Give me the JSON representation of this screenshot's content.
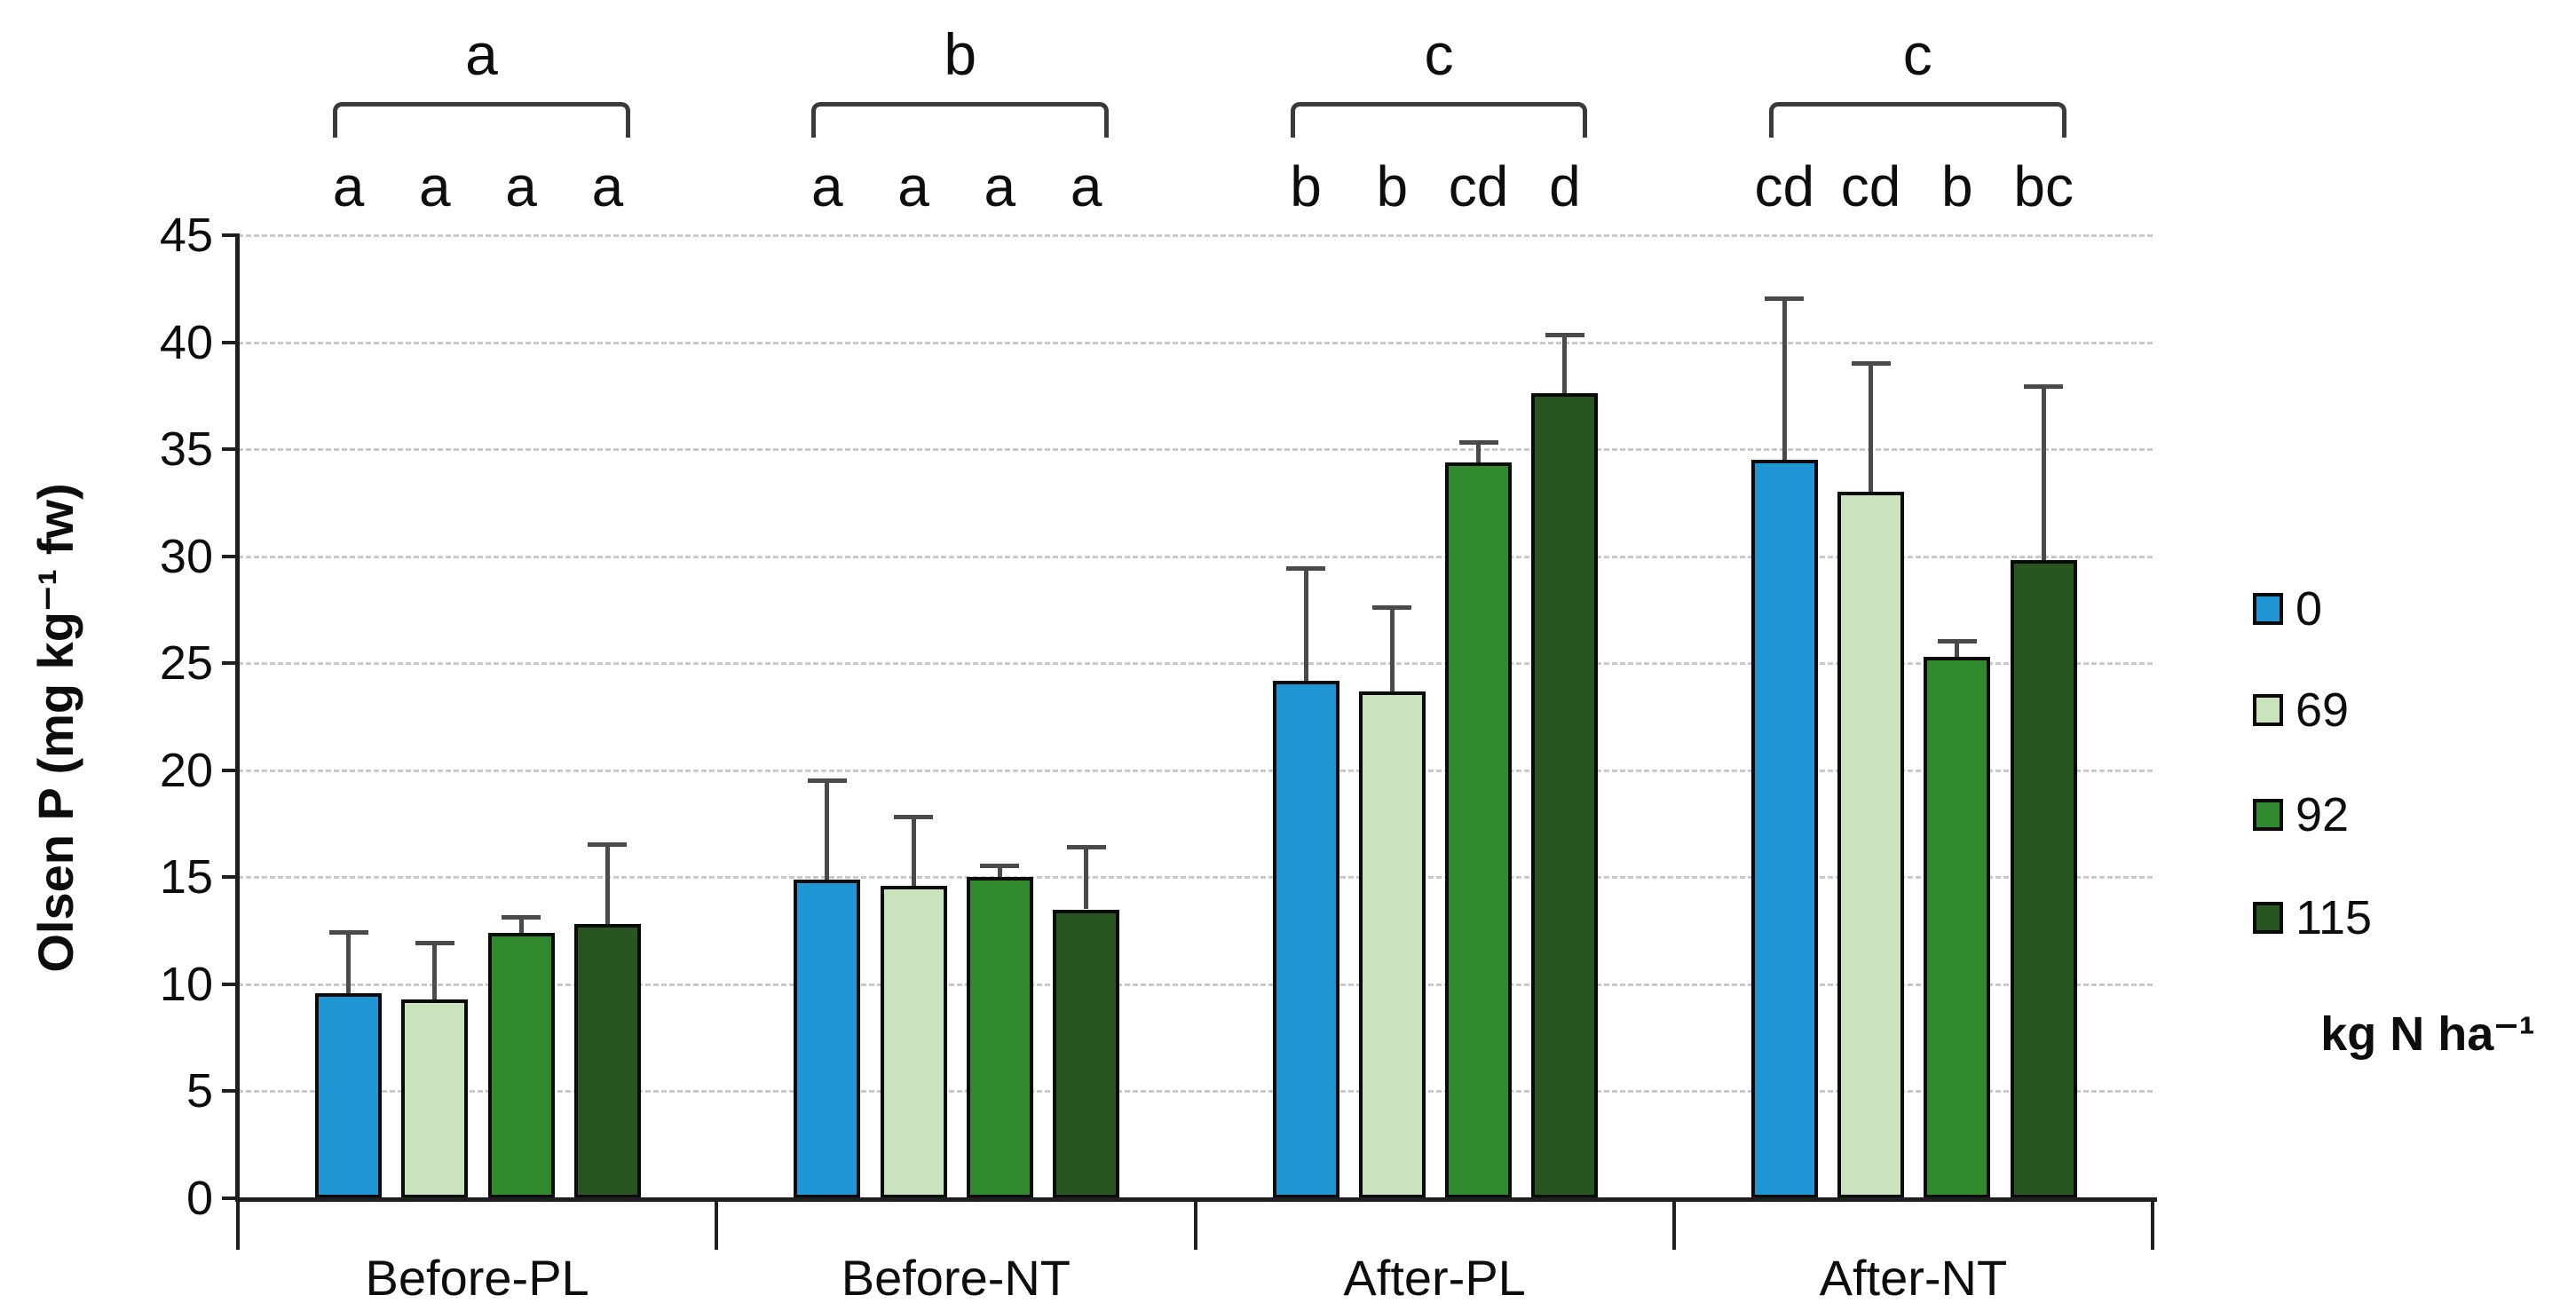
{
  "chart_data": {
    "type": "bar",
    "title": "",
    "ylabel": "Olsen P (mg kg⁻¹ fw)",
    "xlabel": "",
    "ylim": [
      0,
      45
    ],
    "ytick_step": 5,
    "yticks": [
      0,
      5,
      10,
      15,
      20,
      25,
      30,
      35,
      40,
      45
    ],
    "grid": "horizontal-dashed",
    "categories": [
      "Before-PL",
      "Before-NT",
      "After-PL",
      "After-NT"
    ],
    "series": [
      {
        "name": "0",
        "color": "#2097D4",
        "values": [
          9.6,
          14.9,
          24.2,
          34.5
        ],
        "errors": [
          2.8,
          4.6,
          5.2,
          7.5
        ],
        "sig_letters": [
          "a",
          "a",
          "b",
          "cd"
        ]
      },
      {
        "name": "69",
        "color": "#C9E3BD",
        "values": [
          9.3,
          14.6,
          23.7,
          33.0
        ],
        "errors": [
          2.6,
          3.2,
          3.9,
          6.0
        ],
        "sig_letters": [
          "a",
          "a",
          "b",
          "cd"
        ]
      },
      {
        "name": "92",
        "color": "#318A2D",
        "values": [
          12.4,
          15.0,
          34.4,
          25.3
        ],
        "errors": [
          0.7,
          0.5,
          0.9,
          0.7
        ],
        "sig_letters": [
          "a",
          "a",
          "cd",
          "b"
        ]
      },
      {
        "name": "115",
        "color": "#27571F",
        "values": [
          12.8,
          13.5,
          37.6,
          29.8
        ],
        "errors": [
          3.7,
          2.9,
          2.7,
          8.1
        ],
        "sig_letters": [
          "a",
          "a",
          "d",
          "bc"
        ]
      }
    ],
    "group_letters": [
      "a",
      "b",
      "c",
      "c"
    ],
    "legend_title": "kg N ha⁻¹",
    "legend_position": "right",
    "style": {
      "axis_color": "#1f1f1f",
      "grid_color": "#c9c9c9",
      "error_bar_color": "#4a4a4a",
      "bracket_color": "#3a3a3a",
      "background": "#ffffff"
    }
  }
}
